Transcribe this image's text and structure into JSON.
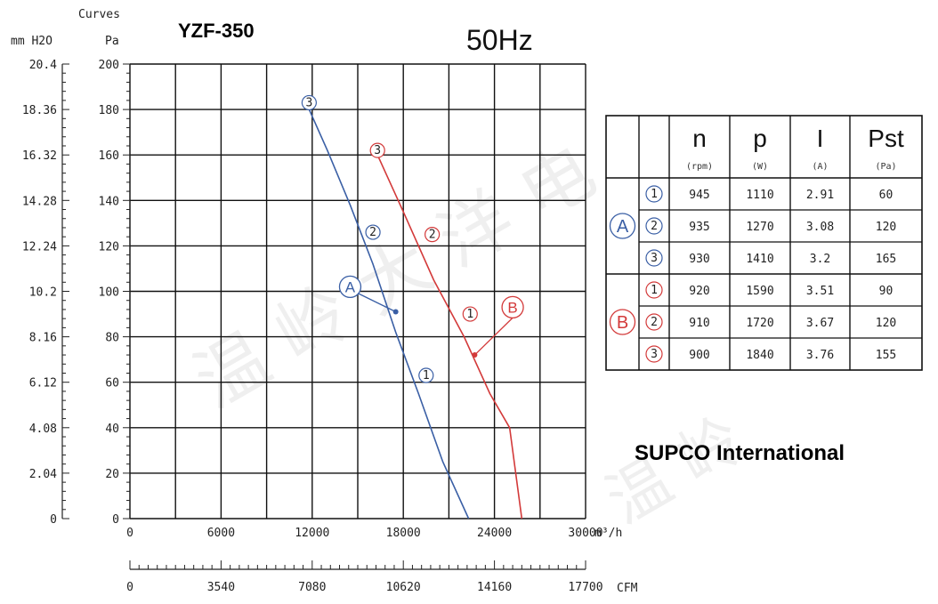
{
  "chart_data": {
    "type": "line",
    "title": "YZF-350",
    "subtitle": "50Hz",
    "company": "SUPCO International",
    "y_header": "Curves",
    "y_left_unit": "mm H2O",
    "y_right_unit": "Pa",
    "x_unit": "m³/h",
    "x2_unit": "CFM",
    "xlim": [
      0,
      30000
    ],
    "ylim": [
      0,
      200
    ],
    "x_ticks": [
      "0",
      "6000",
      "12000",
      "18000",
      "24000",
      "30000"
    ],
    "x2_ticks": [
      "0",
      "3540",
      "7080",
      "10620",
      "14160",
      "17700"
    ],
    "y_ticks_pa": [
      "0",
      "20",
      "40",
      "60",
      "80",
      "100",
      "120",
      "140",
      "160",
      "180",
      "200"
    ],
    "y_ticks_mm": [
      "0",
      "2.04",
      "4.08",
      "6.12",
      "8.16",
      "10.2",
      "12.24",
      "14.28",
      "16.32",
      "18.36",
      "20.4"
    ],
    "grid": true,
    "series": [
      {
        "name": "A",
        "color": "#3a5fa5",
        "x": [
          11800,
          13000,
          14500,
          16000,
          17500,
          19000,
          20600,
          22300
        ],
        "y": [
          180,
          162,
          138,
          112,
          82,
          55,
          25,
          0
        ],
        "markers": [
          {
            "label": "3",
            "x": 11800,
            "y": 183
          },
          {
            "label": "2",
            "x": 16000,
            "y": 126
          },
          {
            "label": "1",
            "x": 19500,
            "y": 63
          }
        ],
        "operating_point": {
          "label": "A",
          "x": 17500,
          "y": 91,
          "label_x": 14500,
          "label_y": 102
        }
      },
      {
        "name": "B",
        "color": "#d33a3a",
        "x": [
          16300,
          18000,
          20000,
          22000,
          23700,
          25000,
          25800
        ],
        "y": [
          160,
          135,
          105,
          80,
          55,
          40,
          0
        ],
        "markers": [
          {
            "label": "3",
            "x": 16300,
            "y": 162
          },
          {
            "label": "2",
            "x": 19900,
            "y": 125
          },
          {
            "label": "1",
            "x": 22400,
            "y": 90
          }
        ],
        "operating_point": {
          "label": "B",
          "x": 22700,
          "y": 72,
          "label_x": 25200,
          "label_y": 93
        }
      }
    ]
  },
  "table": {
    "headers": [
      {
        "main": "n",
        "sub": "(rpm)"
      },
      {
        "main": "p",
        "sub": "(W)"
      },
      {
        "main": "I",
        "sub": "(A)"
      },
      {
        "main": "Pst",
        "sub": "(Pa)"
      }
    ],
    "groups": [
      {
        "label": "A",
        "color": "#3a5fa5",
        "rows": [
          {
            "marker": "1",
            "n": "945",
            "p": "1110",
            "i": "2.91",
            "pst": "60"
          },
          {
            "marker": "2",
            "n": "935",
            "p": "1270",
            "i": "3.08",
            "pst": "120"
          },
          {
            "marker": "3",
            "n": "930",
            "p": "1410",
            "i": "3.2",
            "pst": "165"
          }
        ]
      },
      {
        "label": "B",
        "color": "#d33a3a",
        "rows": [
          {
            "marker": "1",
            "n": "920",
            "p": "1590",
            "i": "3.51",
            "pst": "90"
          },
          {
            "marker": "2",
            "n": "910",
            "p": "1720",
            "i": "3.67",
            "pst": "120"
          },
          {
            "marker": "3",
            "n": "900",
            "p": "1840",
            "i": "3.76",
            "pst": "155"
          }
        ]
      }
    ]
  }
}
